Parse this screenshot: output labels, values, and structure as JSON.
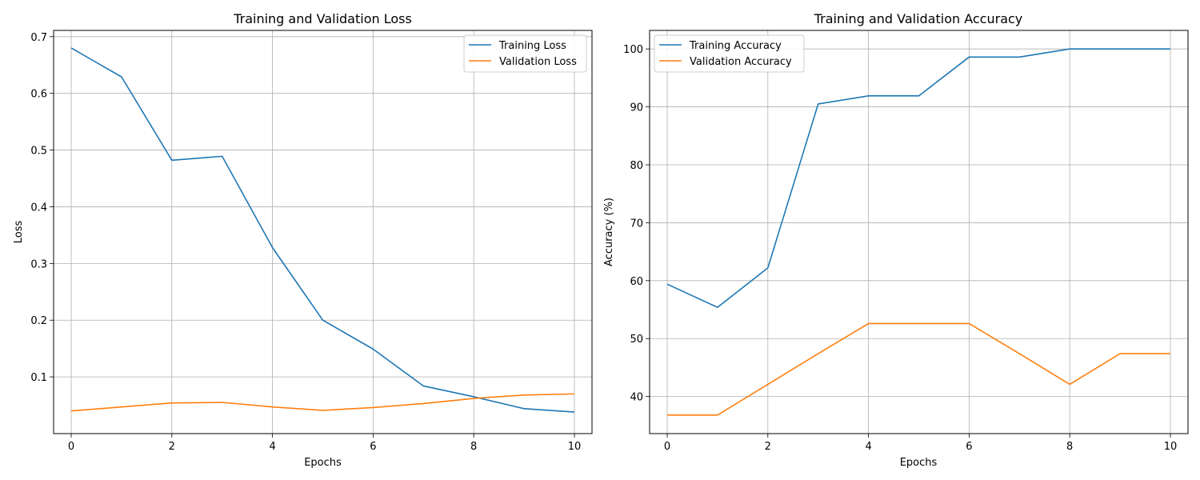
{
  "chart_data": [
    {
      "type": "line",
      "title": "Training and Validation Loss",
      "xlabel": "Epochs",
      "ylabel": "Loss",
      "x": [
        0,
        1,
        2,
        3,
        4,
        5,
        6,
        7,
        8,
        9,
        10
      ],
      "xlim": [
        -0.35,
        10.35
      ],
      "ylim": [
        0.0,
        0.711
      ],
      "xticks": [
        0,
        2,
        4,
        6,
        8,
        10
      ],
      "yticks": [
        0.1,
        0.2,
        0.3,
        0.4,
        0.5,
        0.6,
        0.7
      ],
      "ytick_labels": [
        "0.1",
        "0.2",
        "0.3",
        "0.4",
        "0.5",
        "0.6",
        "0.7"
      ],
      "grid": true,
      "legend": "upper right",
      "series": [
        {
          "name": "Training Loss",
          "color": "#1f77b4",
          "values": [
            0.68,
            0.629,
            0.482,
            0.489,
            0.328,
            0.2,
            0.149,
            0.084,
            0.065,
            0.044,
            0.038
          ]
        },
        {
          "name": "Validation Loss",
          "color": "#ff7f0e",
          "values": [
            0.04,
            0.047,
            0.054,
            0.055,
            0.047,
            0.041,
            0.046,
            0.053,
            0.062,
            0.068,
            0.07
          ]
        }
      ]
    },
    {
      "type": "line",
      "title": "Training and Validation Accuracy",
      "xlabel": "Epochs",
      "ylabel": "Accuracy (%)",
      "x": [
        0,
        1,
        2,
        3,
        4,
        5,
        6,
        7,
        8,
        9,
        10
      ],
      "xlim": [
        -0.35,
        10.35
      ],
      "ylim": [
        33.6,
        103.2
      ],
      "xticks": [
        0,
        2,
        4,
        6,
        8,
        10
      ],
      "yticks": [
        40,
        50,
        60,
        70,
        80,
        90,
        100
      ],
      "ytick_labels": [
        "40",
        "50",
        "60",
        "70",
        "80",
        "90",
        "100"
      ],
      "grid": true,
      "legend": "upper left",
      "series": [
        {
          "name": "Training Accuracy",
          "color": "#1f77b4",
          "values": [
            59.4,
            55.4,
            62.2,
            90.5,
            91.9,
            91.9,
            98.6,
            98.6,
            100.0,
            100.0,
            100.0
          ]
        },
        {
          "name": "Validation Accuracy",
          "color": "#ff7f0e",
          "values": [
            36.8,
            36.8,
            42.1,
            47.4,
            52.6,
            52.6,
            52.6,
            47.4,
            42.1,
            47.4,
            47.4
          ]
        }
      ]
    }
  ]
}
